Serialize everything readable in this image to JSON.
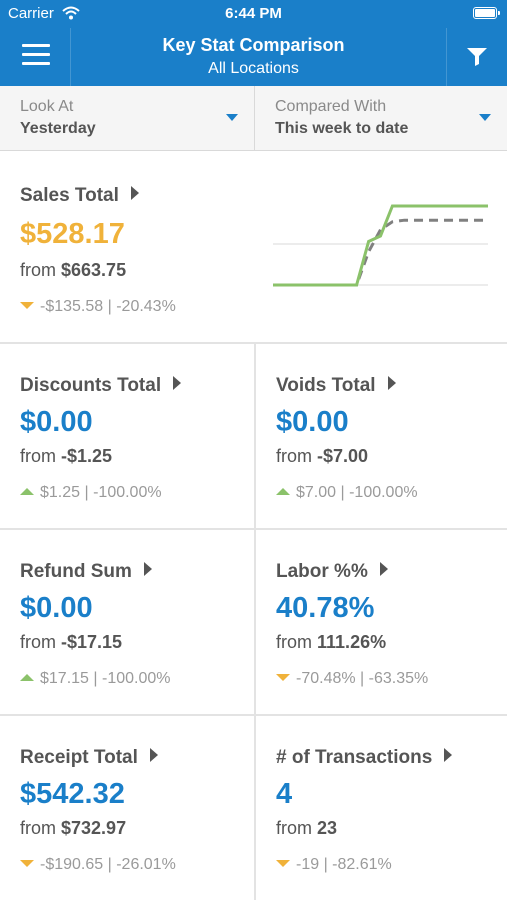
{
  "status_bar": {
    "carrier": "Carrier",
    "time": "6:44 PM"
  },
  "nav": {
    "title": "Key Stat Comparison",
    "subtitle": "All Locations",
    "menu_icon": "menu-icon",
    "filter_icon": "filter-icon"
  },
  "selectors": {
    "look_at": {
      "label": "Look At",
      "value": "Yesterday"
    },
    "compared_with": {
      "label": "Compared With",
      "value": "This week to date"
    }
  },
  "colors": {
    "brand": "#1a7fc9",
    "sales_value": "#f0b23a",
    "value": "#1a7fc9",
    "down": "#f0b23a",
    "up": "#8bc26a"
  },
  "stats": {
    "sales_total": {
      "title": "Sales Total",
      "value": "$528.17",
      "from_prefix": "from",
      "from_value": "$663.75",
      "change": "-$135.58 | -20.43%",
      "trend": "down"
    },
    "discounts_total": {
      "title": "Discounts Total",
      "value": "$0.00",
      "from_prefix": "from",
      "from_value": "-$1.25",
      "change": "$1.25 | -100.00%",
      "trend": "up"
    },
    "voids_total": {
      "title": "Voids Total",
      "value": "$0.00",
      "from_prefix": "from",
      "from_value": "-$7.00",
      "change": "$7.00 | -100.00%",
      "trend": "up"
    },
    "refund_sum": {
      "title": "Refund Sum",
      "value": "$0.00",
      "from_prefix": "from",
      "from_value": "-$17.15",
      "change": "$17.15 | -100.00%",
      "trend": "up"
    },
    "labor_pct": {
      "title": "Labor %%",
      "value": "40.78%",
      "from_prefix": "from",
      "from_value": "111.26%",
      "change": "-70.48% | -63.35%",
      "trend": "down"
    },
    "receipt_total": {
      "title": "Receipt Total",
      "value": "$542.32",
      "from_prefix": "from",
      "from_value": "$732.97",
      "change": "-$190.65 | -26.01%",
      "trend": "down"
    },
    "num_transactions": {
      "title": "# of Transactions",
      "value": "4",
      "from_prefix": "from",
      "from_value": "23",
      "change": "-19 | -82.61%",
      "trend": "down"
    }
  },
  "sparkline": {
    "current": [
      0,
      0,
      0,
      0,
      0,
      0,
      0,
      0,
      0.55,
      0.62,
      1,
      1,
      1,
      1,
      1,
      1,
      1,
      1,
      1
    ],
    "comparison": [
      0,
      0,
      0,
      0,
      0,
      0,
      0,
      0,
      0.42,
      0.7,
      0.8,
      0.82,
      0.82,
      0.82,
      0.82,
      0.82,
      0.82,
      0.82,
      0.82
    ],
    "current_color": "#8bc26a",
    "comparison_color": "#808080"
  }
}
